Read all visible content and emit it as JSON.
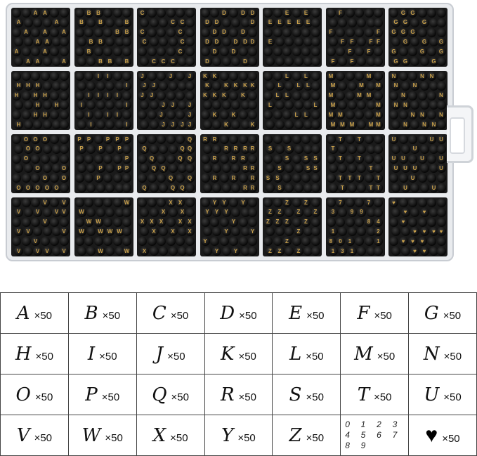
{
  "box": {
    "compartment_letters": [
      [
        "A",
        "B",
        "C",
        "D",
        "E",
        "F",
        "G"
      ],
      [
        "H",
        "I",
        "J",
        "K",
        "L",
        "M",
        "N"
      ],
      [
        "O",
        "P",
        "Q",
        "R",
        "S",
        "T",
        "U"
      ],
      [
        "V",
        "W",
        "X",
        "Y",
        "Z",
        "0-9",
        "♥"
      ]
    ],
    "bead_color": "#0d0d0d",
    "letter_color": "#c9a04a"
  },
  "table": {
    "rows": [
      [
        {
          "label": "A",
          "qty": "×50"
        },
        {
          "label": "B",
          "qty": "×50"
        },
        {
          "label": "C",
          "qty": "×50"
        },
        {
          "label": "D",
          "qty": "×50"
        },
        {
          "label": "E",
          "qty": "×50"
        },
        {
          "label": "F",
          "qty": "×50"
        },
        {
          "label": "G",
          "qty": "×50"
        }
      ],
      [
        {
          "label": "H",
          "qty": "×50"
        },
        {
          "label": "I",
          "qty": "×50"
        },
        {
          "label": "J",
          "qty": "×50"
        },
        {
          "label": "K",
          "qty": "×50"
        },
        {
          "label": "L",
          "qty": "×50"
        },
        {
          "label": "M",
          "qty": "×50"
        },
        {
          "label": "N",
          "qty": "×50"
        }
      ],
      [
        {
          "label": "O",
          "qty": "×50"
        },
        {
          "label": "P",
          "qty": "×50"
        },
        {
          "label": "Q",
          "qty": "×50"
        },
        {
          "label": "R",
          "qty": "×50"
        },
        {
          "label": "S",
          "qty": "×50"
        },
        {
          "label": "T",
          "qty": "×50"
        },
        {
          "label": "U",
          "qty": "×50"
        }
      ],
      [
        {
          "label": "V",
          "qty": "×50"
        },
        {
          "label": "W",
          "qty": "×50"
        },
        {
          "label": "X",
          "qty": "×50"
        },
        {
          "label": "Y",
          "qty": "×50"
        },
        {
          "label": "Z",
          "qty": "×50"
        },
        {
          "digits": [
            "0",
            "1",
            "2",
            "3",
            "4",
            "5",
            "6",
            "7",
            "8",
            "9"
          ]
        },
        {
          "icon": "heart-icon",
          "qty": "×50"
        }
      ]
    ]
  }
}
